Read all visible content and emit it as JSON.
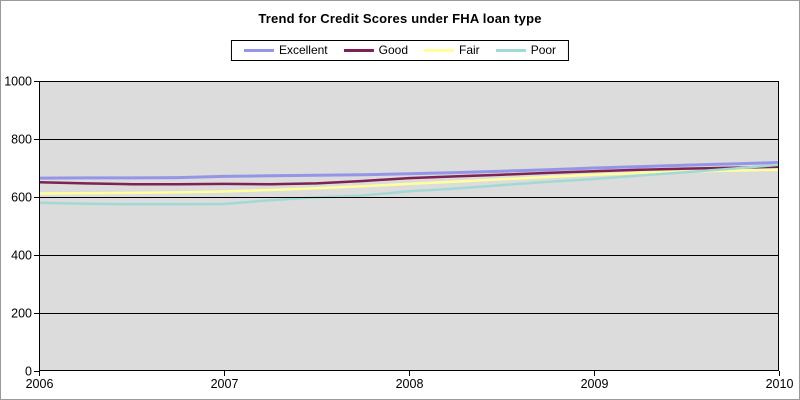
{
  "title": "Trend for Credit Scores under FHA loan type",
  "colors": {
    "canvas_background": "#FFFFFF",
    "canvas_border": "#9A9A9A",
    "plot_background": "#DCDCDC",
    "grid": "#000000",
    "axis": "#000000",
    "tick_label": "#000000"
  },
  "legend": {
    "items": [
      {
        "label": "Excellent",
        "color": "#9595E8"
      },
      {
        "label": "Good",
        "color": "#7E2253"
      },
      {
        "label": "Fair",
        "color": "#FFFF9C"
      },
      {
        "label": "Poor",
        "color": "#A2D9D5"
      }
    ]
  },
  "chart_data": {
    "type": "line",
    "title": "Trend for Credit Scores under FHA loan type",
    "xlabel": "",
    "ylabel": "",
    "xlim": [
      2006,
      2010
    ],
    "ylim": [
      0,
      1000
    ],
    "x_ticks": [
      "2006",
      "2007",
      "2008",
      "2009",
      "2010"
    ],
    "x_tick_values": [
      2006,
      2007,
      2008,
      2009,
      2010
    ],
    "y_ticks": [
      "0",
      "200",
      "400",
      "600",
      "800",
      "1000"
    ],
    "y_tick_values": [
      0,
      200,
      400,
      600,
      800,
      1000
    ],
    "grid": true,
    "legend_position": "top-center",
    "x": [
      2006,
      2006.25,
      2006.5,
      2006.75,
      2007,
      2007.25,
      2007.5,
      2007.75,
      2008,
      2008.25,
      2008.5,
      2008.75,
      2009,
      2009.25,
      2009.5,
      2009.75,
      2010
    ],
    "series": [
      {
        "name": "Excellent",
        "color": "#9595E8",
        "width": 3,
        "values": [
          665,
          666,
          666,
          667,
          671,
          673,
          675,
          677,
          680,
          684,
          689,
          694,
          700,
          705,
          710,
          714,
          719
        ]
      },
      {
        "name": "Good",
        "color": "#7E2253",
        "width": 2.5,
        "values": [
          651,
          647,
          644,
          644,
          645,
          644,
          647,
          655,
          665,
          671,
          677,
          683,
          689,
          694,
          698,
          701,
          704
        ]
      },
      {
        "name": "Fair",
        "color": "#FFFF9C",
        "width": 2.5,
        "values": [
          612,
          613,
          614,
          616,
          619,
          624,
          630,
          637,
          645,
          653,
          661,
          669,
          677,
          683,
          688,
          691,
          694
        ]
      },
      {
        "name": "Poor",
        "color": "#A2D9D5",
        "width": 2.5,
        "values": [
          580,
          577,
          575,
          575,
          576,
          589,
          599,
          605,
          620,
          629,
          641,
          652,
          662,
          674,
          686,
          698,
          711
        ]
      }
    ]
  }
}
